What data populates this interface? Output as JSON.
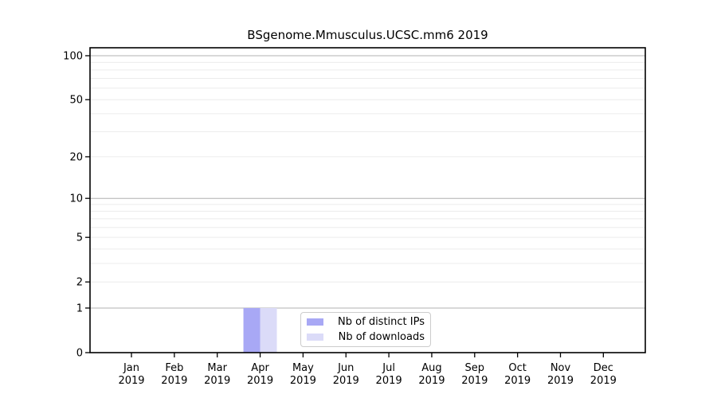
{
  "title": "BSgenome.Mmusculus.UCSC.mm6 2019",
  "colors": {
    "bar_distinct_ips": "#a8a8f5",
    "bar_downloads": "#dbdbf8",
    "grid_major": "#b0b0b0",
    "grid_minor": "#ececec",
    "spine": "#000000",
    "legend_border": "#cccccc",
    "text": "#000000"
  },
  "legend": {
    "items": [
      {
        "label": "Nb of distinct IPs",
        "color": "#a8a8f5"
      },
      {
        "label": "Nb of downloads",
        "color": "#dbdbf8"
      }
    ]
  },
  "chart_data": {
    "type": "bar",
    "title": "BSgenome.Mmusculus.UCSC.mm6 2019",
    "categories": [
      "Jan",
      "Feb",
      "Mar",
      "Apr",
      "May",
      "Jun",
      "Jul",
      "Aug",
      "Sep",
      "Oct",
      "Nov",
      "Dec"
    ],
    "year_label": "2019",
    "series": [
      {
        "name": "Nb of distinct IPs",
        "color": "#a8a8f5",
        "values": [
          0,
          0,
          0,
          1,
          0,
          0,
          0,
          0,
          0,
          0,
          0,
          0
        ]
      },
      {
        "name": "Nb of downloads",
        "color": "#dbdbf8",
        "values": [
          0,
          0,
          0,
          1,
          0,
          0,
          0,
          0,
          0,
          0,
          0,
          0
        ]
      }
    ],
    "xlabel": "",
    "ylabel": "",
    "yscale": "log1p",
    "ylim": [
      0,
      113
    ],
    "yticks": [
      0,
      1,
      2,
      5,
      10,
      20,
      50,
      100
    ],
    "major_gridlines": [
      1,
      10,
      100
    ],
    "minor_gridlines": [
      2,
      3,
      4,
      5,
      6,
      7,
      8,
      9,
      20,
      30,
      40,
      50,
      60,
      70,
      80,
      90
    ],
    "grid": "on",
    "legend_position": "lower center inside plot"
  }
}
